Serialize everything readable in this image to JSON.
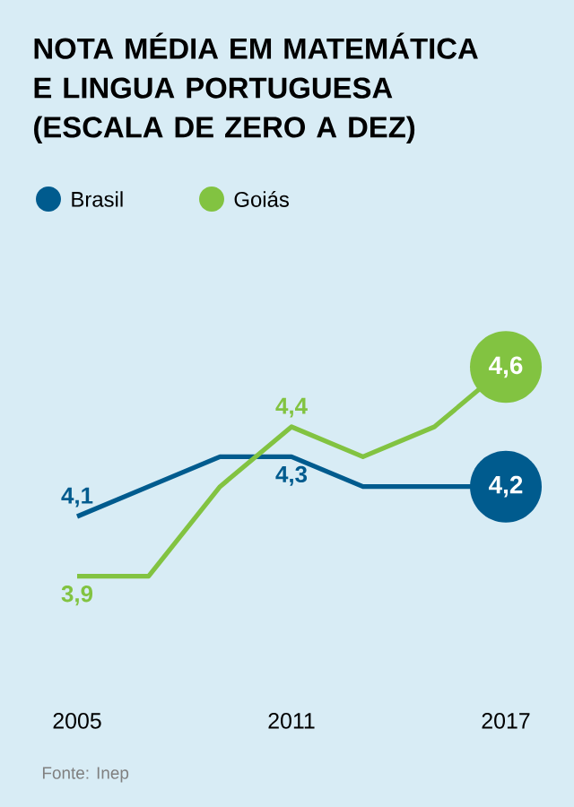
{
  "chart_data": {
    "type": "line",
    "title": "NOTA MÉDIA EM MATEMÁTICA E LINGUA PORTUGUESA (ESCALA DE ZERO A DEZ)",
    "x": [
      2005,
      2007,
      2009,
      2011,
      2013,
      2015,
      2017
    ],
    "xlim": [
      2005,
      2017
    ],
    "xticks": [
      2005,
      2011,
      2017
    ],
    "series": [
      {
        "name": "Brasil",
        "color": "#005b8e",
        "values": [
          4.1,
          4.2,
          4.3,
          4.3,
          4.2,
          4.2,
          4.2
        ],
        "value_labels": [
          "4,1",
          null,
          null,
          "4,3",
          null,
          null,
          "4,2"
        ]
      },
      {
        "name": "Goiás",
        "color": "#82c341",
        "values": [
          3.9,
          3.9,
          4.2,
          4.4,
          4.3,
          4.4,
          4.6
        ],
        "value_labels": [
          "3,9",
          null,
          null,
          "4,4",
          null,
          null,
          "4,6"
        ]
      }
    ],
    "legend": "top left",
    "grid": false,
    "tick_labels": "x",
    "marker": "none",
    "line_style": "solid",
    "annotations": [
      "Fonte: Inep"
    ]
  }
}
